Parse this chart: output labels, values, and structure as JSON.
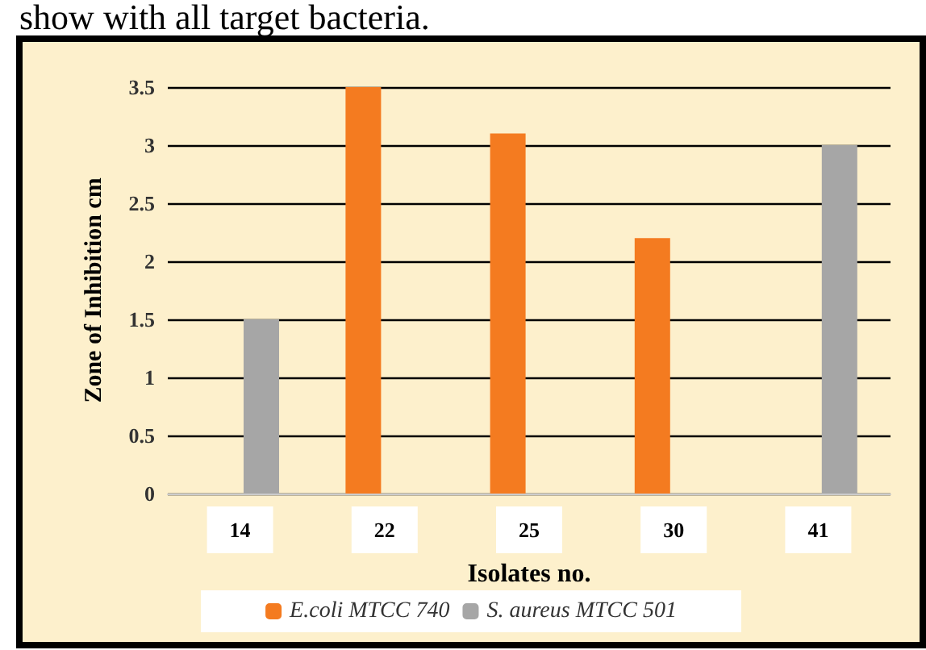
{
  "chart_data": {
    "type": "bar",
    "xlabel": "Isolates no.",
    "ylabel": "Zone of Inhibition cm",
    "annotations": [
      "show with all target bacteria."
    ],
    "categories": [
      "14",
      "22",
      "25",
      "30",
      "41"
    ],
    "series": [
      {
        "name": "E.coli MTCC 740",
        "color": "#f47b20",
        "values": [
          0,
          3.5,
          3.1,
          2.2,
          0
        ]
      },
      {
        "name": "S. aureus MTCC 501",
        "color": "#a6a6a6",
        "values": [
          1.5,
          0,
          0,
          0,
          3.0
        ]
      }
    ],
    "ylim": [
      0,
      3.5
    ],
    "yticks": [
      0,
      0.5,
      1,
      1.5,
      2,
      2.5,
      3,
      3.5
    ],
    "grid": "y",
    "legend": "bottom"
  }
}
